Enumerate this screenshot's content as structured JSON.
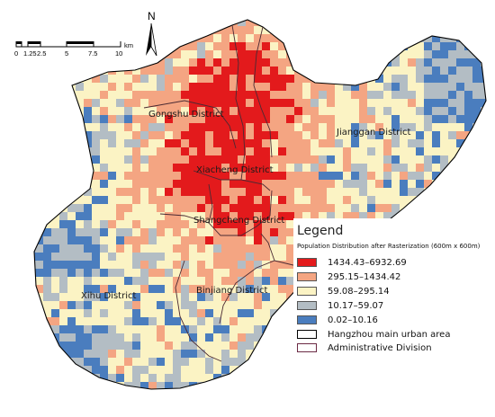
{
  "scale_bar": {
    "ticks": [
      "0",
      "1.25",
      "2.5",
      "5",
      "7.5",
      "10"
    ],
    "unit": "km"
  },
  "north_arrow": {
    "letter": "N",
    "icon": "north-arrow-icon"
  },
  "districts": [
    {
      "key": "gongshu",
      "name": "Gongshu District"
    },
    {
      "key": "jianggan",
      "name": "Jianggan District"
    },
    {
      "key": "xiacheng",
      "name": "Xiacheng District"
    },
    {
      "key": "shangcheng",
      "name": "Shangcheng District"
    },
    {
      "key": "binjiang",
      "name": "Binjiang District"
    },
    {
      "key": "xihu",
      "name": "Xihu District"
    }
  ],
  "legend": {
    "title": "Legend",
    "subtitle": "Population Distribution after Rasterization (600m x 600m)",
    "classes": [
      {
        "label": "1434.43–6932.69",
        "color": "#e31a1c"
      },
      {
        "label": "295.15–1434.42",
        "color": "#f4a582"
      },
      {
        "label": "59.08–295.14",
        "color": "#fbf3c4"
      },
      {
        "label": "10.17–59.07",
        "color": "#b3bdc4"
      },
      {
        "label": "0.02–10.16",
        "color": "#4a7dbe"
      }
    ],
    "boundaries": [
      {
        "label": "Hangzhou main urban area",
        "color": "#000000"
      },
      {
        "label": "Administrative Division",
        "color": "#6b2a44"
      }
    ]
  }
}
